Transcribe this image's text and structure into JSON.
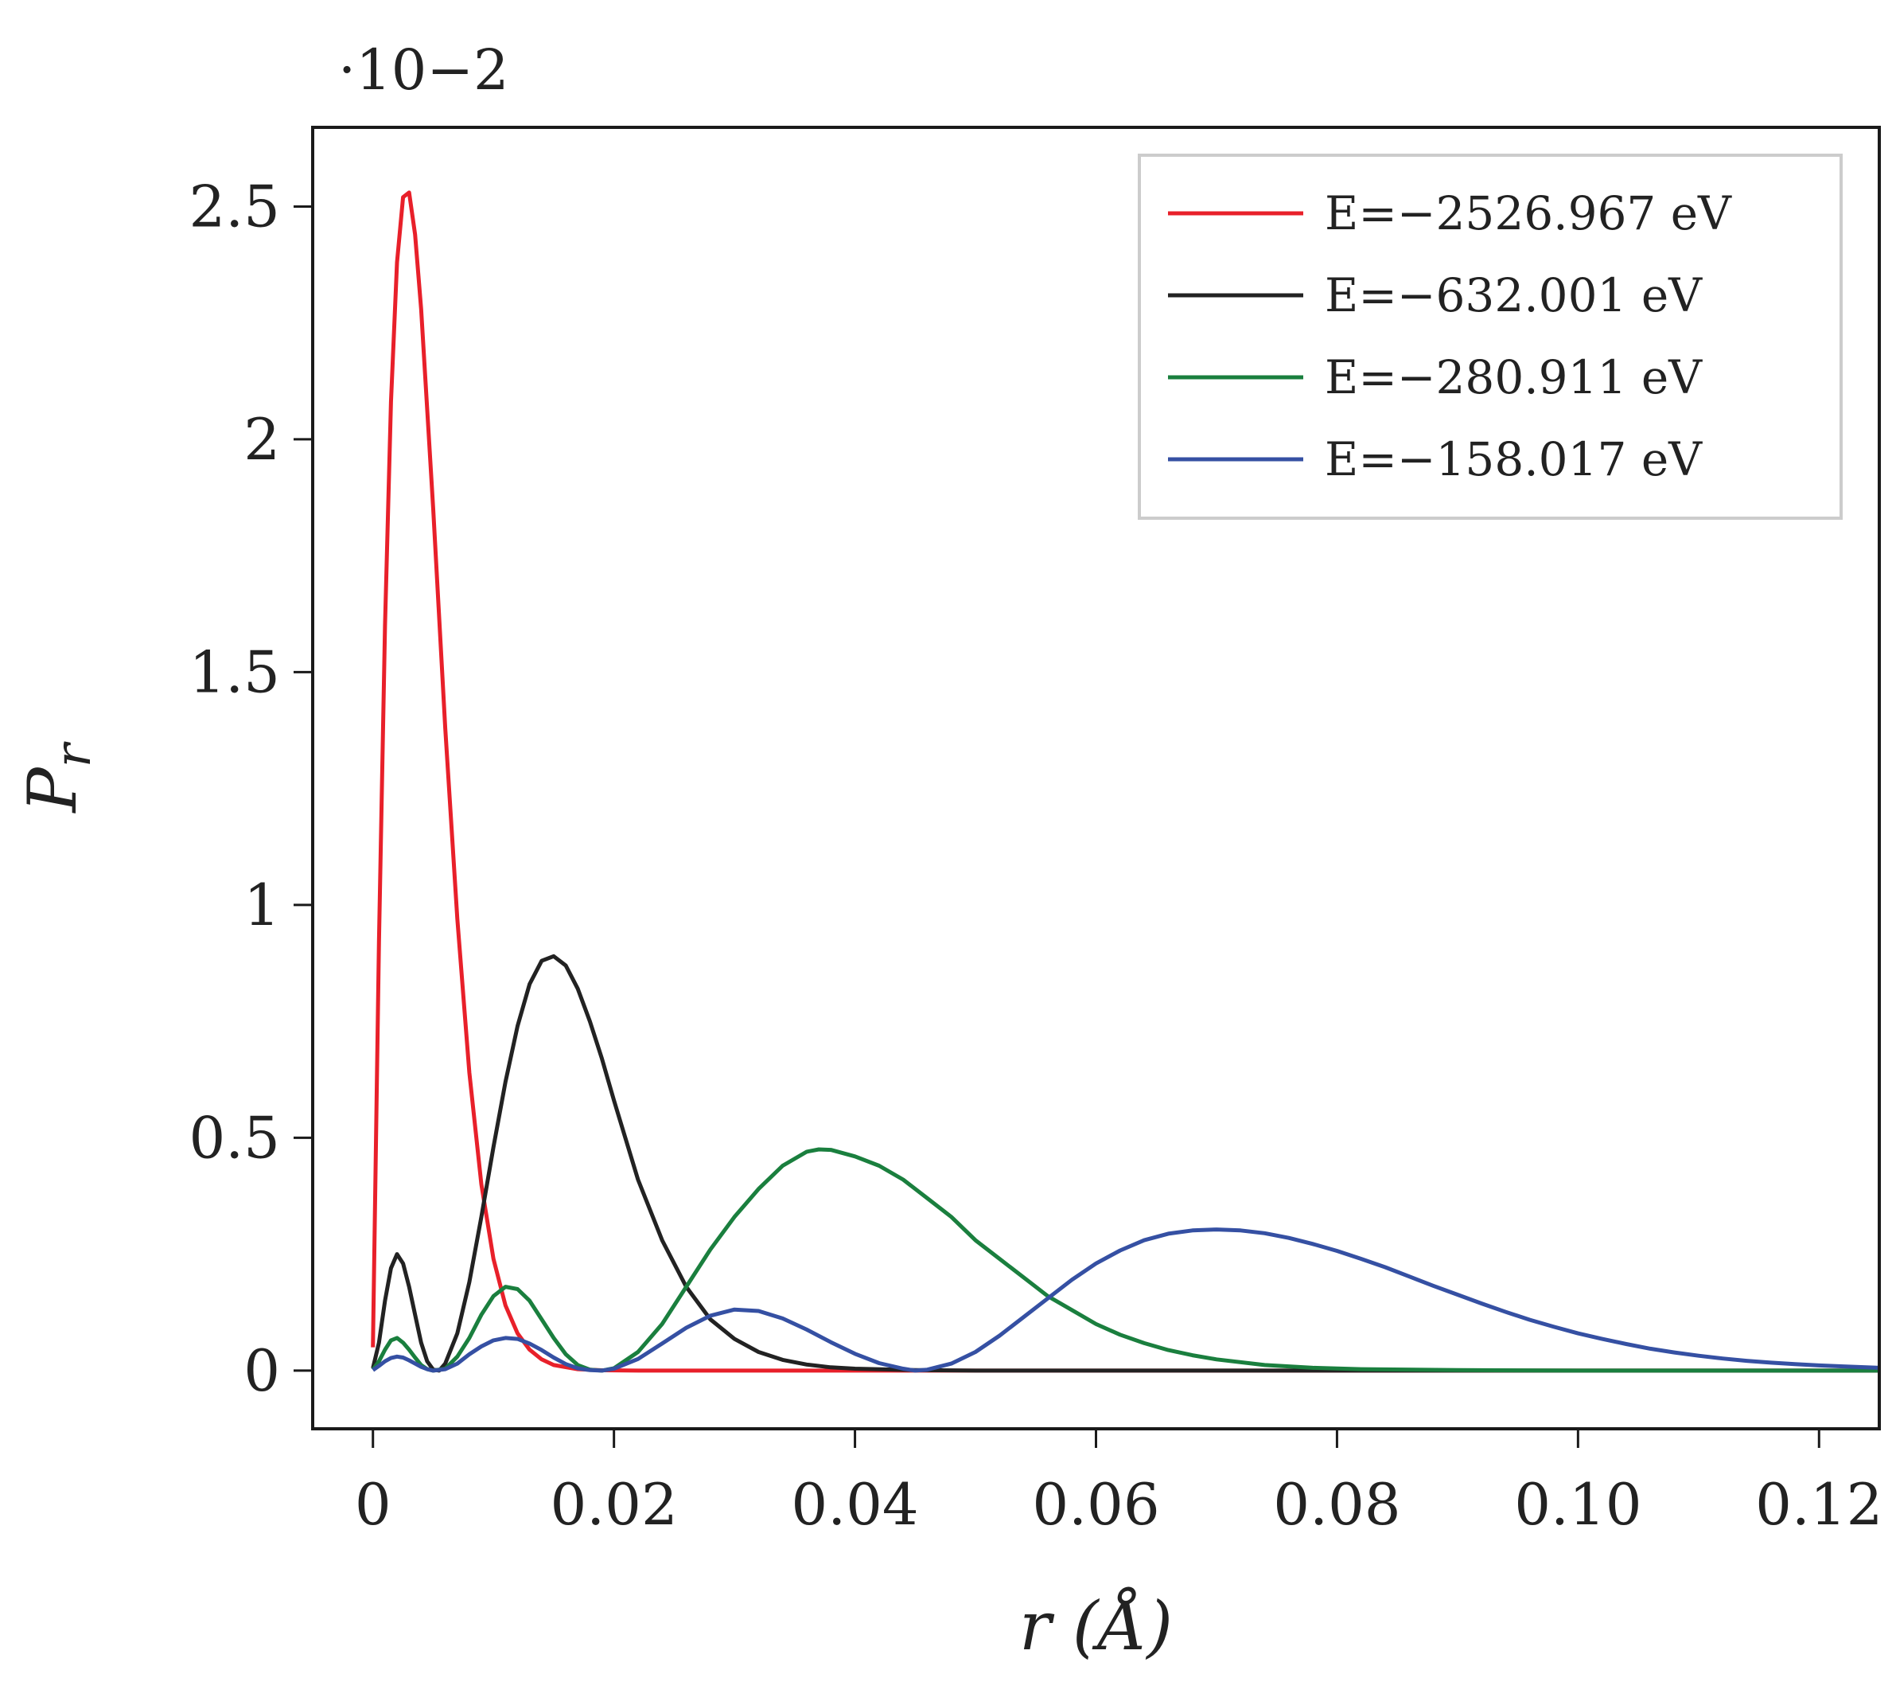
{
  "chart_data": {
    "type": "line",
    "title": "",
    "xlabel": "r (Å)",
    "ylabel": "P_r",
    "y_scale_note": "·10−2",
    "xlim": [
      -0.005,
      0.125
    ],
    "ylim": [
      -0.125,
      2.67
    ],
    "x_ticks": [
      0,
      0.02,
      0.04,
      0.06,
      0.08,
      0.1,
      0.12
    ],
    "x_tick_labels": [
      "0",
      "0.02",
      "0.04",
      "0.06",
      "0.08",
      "0.10",
      "0.12"
    ],
    "y_ticks": [
      0,
      0.5,
      1,
      1.5,
      2,
      2.5
    ],
    "y_tick_labels": [
      "0",
      "0.5",
      "1",
      "1.5",
      "2",
      "2.5"
    ],
    "grid": false,
    "legend_position": "top-right",
    "series": [
      {
        "name": "E=−2526.967 eV",
        "color": "#e8202a",
        "points": [
          [
            0,
            0.05
          ],
          [
            0.0005,
            0.92
          ],
          [
            0.001,
            1.6
          ],
          [
            0.0015,
            2.08
          ],
          [
            0.002,
            2.38
          ],
          [
            0.0025,
            2.52
          ],
          [
            0.003,
            2.53
          ],
          [
            0.0035,
            2.44
          ],
          [
            0.004,
            2.28
          ],
          [
            0.005,
            1.85
          ],
          [
            0.006,
            1.38
          ],
          [
            0.007,
            0.97
          ],
          [
            0.008,
            0.64
          ],
          [
            0.009,
            0.4
          ],
          [
            0.01,
            0.24
          ],
          [
            0.011,
            0.14
          ],
          [
            0.012,
            0.08
          ],
          [
            0.013,
            0.045
          ],
          [
            0.014,
            0.024
          ],
          [
            0.015,
            0.012
          ],
          [
            0.017,
            0.003
          ],
          [
            0.019,
            0.0007
          ],
          [
            0.022,
            0
          ],
          [
            0.03,
            0
          ],
          [
            0.06,
            0
          ],
          [
            0.125,
            0
          ]
        ]
      },
      {
        "name": "E=−632.001 eV",
        "color": "#222222",
        "points": [
          [
            0,
            0.005
          ],
          [
            0.0005,
            0.06
          ],
          [
            0.001,
            0.15
          ],
          [
            0.0015,
            0.22
          ],
          [
            0.002,
            0.25
          ],
          [
            0.0025,
            0.23
          ],
          [
            0.003,
            0.18
          ],
          [
            0.0035,
            0.12
          ],
          [
            0.004,
            0.06
          ],
          [
            0.0045,
            0.02
          ],
          [
            0.005,
            0.002
          ],
          [
            0.0055,
            0
          ],
          [
            0.006,
            0.015
          ],
          [
            0.007,
            0.08
          ],
          [
            0.008,
            0.19
          ],
          [
            0.009,
            0.33
          ],
          [
            0.01,
            0.48
          ],
          [
            0.011,
            0.62
          ],
          [
            0.012,
            0.74
          ],
          [
            0.013,
            0.83
          ],
          [
            0.014,
            0.88
          ],
          [
            0.015,
            0.89
          ],
          [
            0.016,
            0.87
          ],
          [
            0.017,
            0.82
          ],
          [
            0.018,
            0.75
          ],
          [
            0.019,
            0.67
          ],
          [
            0.02,
            0.58
          ],
          [
            0.022,
            0.41
          ],
          [
            0.024,
            0.28
          ],
          [
            0.026,
            0.18
          ],
          [
            0.028,
            0.11
          ],
          [
            0.03,
            0.068
          ],
          [
            0.032,
            0.04
          ],
          [
            0.034,
            0.023
          ],
          [
            0.036,
            0.013
          ],
          [
            0.038,
            0.007
          ],
          [
            0.04,
            0.004
          ],
          [
            0.045,
            0.001
          ],
          [
            0.05,
            0
          ],
          [
            0.06,
            0
          ],
          [
            0.125,
            0
          ]
        ]
      },
      {
        "name": "E=−280.911 eV",
        "color": "#1a7f3e",
        "points": [
          [
            0,
            0.002
          ],
          [
            0.0005,
            0.02
          ],
          [
            0.001,
            0.045
          ],
          [
            0.0015,
            0.065
          ],
          [
            0.002,
            0.07
          ],
          [
            0.0025,
            0.06
          ],
          [
            0.003,
            0.045
          ],
          [
            0.0035,
            0.028
          ],
          [
            0.004,
            0.012
          ],
          [
            0.0045,
            0.003
          ],
          [
            0.005,
            0
          ],
          [
            0.006,
            0.004
          ],
          [
            0.007,
            0.03
          ],
          [
            0.008,
            0.07
          ],
          [
            0.009,
            0.12
          ],
          [
            0.01,
            0.16
          ],
          [
            0.011,
            0.18
          ],
          [
            0.012,
            0.175
          ],
          [
            0.013,
            0.15
          ],
          [
            0.014,
            0.11
          ],
          [
            0.015,
            0.07
          ],
          [
            0.016,
            0.035
          ],
          [
            0.017,
            0.012
          ],
          [
            0.018,
            0.002
          ],
          [
            0.019,
            0
          ],
          [
            0.02,
            0.005
          ],
          [
            0.022,
            0.04
          ],
          [
            0.024,
            0.1
          ],
          [
            0.026,
            0.18
          ],
          [
            0.028,
            0.26
          ],
          [
            0.03,
            0.33
          ],
          [
            0.032,
            0.39
          ],
          [
            0.034,
            0.44
          ],
          [
            0.036,
            0.47
          ],
          [
            0.037,
            0.475
          ],
          [
            0.038,
            0.474
          ],
          [
            0.04,
            0.46
          ],
          [
            0.042,
            0.44
          ],
          [
            0.044,
            0.41
          ],
          [
            0.046,
            0.37
          ],
          [
            0.048,
            0.33
          ],
          [
            0.05,
            0.28
          ],
          [
            0.052,
            0.24
          ],
          [
            0.054,
            0.2
          ],
          [
            0.056,
            0.16
          ],
          [
            0.058,
            0.13
          ],
          [
            0.06,
            0.1
          ],
          [
            0.062,
            0.077
          ],
          [
            0.064,
            0.059
          ],
          [
            0.066,
            0.044
          ],
          [
            0.068,
            0.033
          ],
          [
            0.07,
            0.024
          ],
          [
            0.074,
            0.012
          ],
          [
            0.078,
            0.006
          ],
          [
            0.082,
            0.003
          ],
          [
            0.09,
            0.001
          ],
          [
            0.1,
            0
          ],
          [
            0.125,
            0
          ]
        ]
      },
      {
        "name": "E=−158.017 eV",
        "color": "#3550a3",
        "points": [
          [
            0,
            0.001
          ],
          [
            0.0005,
            0.01
          ],
          [
            0.001,
            0.02
          ],
          [
            0.0015,
            0.027
          ],
          [
            0.002,
            0.03
          ],
          [
            0.0025,
            0.028
          ],
          [
            0.003,
            0.022
          ],
          [
            0.0035,
            0.015
          ],
          [
            0.004,
            0.008
          ],
          [
            0.0045,
            0.003
          ],
          [
            0.005,
            0
          ],
          [
            0.006,
            0.003
          ],
          [
            0.007,
            0.015
          ],
          [
            0.008,
            0.035
          ],
          [
            0.009,
            0.052
          ],
          [
            0.01,
            0.065
          ],
          [
            0.011,
            0.07
          ],
          [
            0.012,
            0.068
          ],
          [
            0.013,
            0.058
          ],
          [
            0.014,
            0.044
          ],
          [
            0.015,
            0.028
          ],
          [
            0.016,
            0.014
          ],
          [
            0.017,
            0.005
          ],
          [
            0.018,
            0.001
          ],
          [
            0.019,
            0
          ],
          [
            0.02,
            0.004
          ],
          [
            0.022,
            0.025
          ],
          [
            0.024,
            0.058
          ],
          [
            0.026,
            0.092
          ],
          [
            0.028,
            0.118
          ],
          [
            0.03,
            0.131
          ],
          [
            0.032,
            0.128
          ],
          [
            0.034,
            0.112
          ],
          [
            0.036,
            0.088
          ],
          [
            0.038,
            0.061
          ],
          [
            0.04,
            0.036
          ],
          [
            0.042,
            0.016
          ],
          [
            0.044,
            0.004
          ],
          [
            0.045,
            0
          ],
          [
            0.046,
            0.002
          ],
          [
            0.048,
            0.015
          ],
          [
            0.05,
            0.04
          ],
          [
            0.052,
            0.075
          ],
          [
            0.054,
            0.115
          ],
          [
            0.056,
            0.155
          ],
          [
            0.058,
            0.195
          ],
          [
            0.06,
            0.23
          ],
          [
            0.062,
            0.258
          ],
          [
            0.064,
            0.28
          ],
          [
            0.066,
            0.294
          ],
          [
            0.068,
            0.301
          ],
          [
            0.07,
            0.303
          ],
          [
            0.072,
            0.301
          ],
          [
            0.074,
            0.295
          ],
          [
            0.076,
            0.285
          ],
          [
            0.078,
            0.272
          ],
          [
            0.08,
            0.257
          ],
          [
            0.082,
            0.24
          ],
          [
            0.084,
            0.222
          ],
          [
            0.086,
            0.202
          ],
          [
            0.088,
            0.182
          ],
          [
            0.09,
            0.163
          ],
          [
            0.092,
            0.144
          ],
          [
            0.094,
            0.126
          ],
          [
            0.096,
            0.109
          ],
          [
            0.098,
            0.094
          ],
          [
            0.1,
            0.08
          ],
          [
            0.102,
            0.068
          ],
          [
            0.104,
            0.057
          ],
          [
            0.106,
            0.047
          ],
          [
            0.108,
            0.039
          ],
          [
            0.11,
            0.032
          ],
          [
            0.112,
            0.026
          ],
          [
            0.114,
            0.021
          ],
          [
            0.116,
            0.017
          ],
          [
            0.118,
            0.014
          ],
          [
            0.12,
            0.011
          ],
          [
            0.122,
            0.009
          ],
          [
            0.125,
            0.006
          ]
        ]
      }
    ]
  }
}
